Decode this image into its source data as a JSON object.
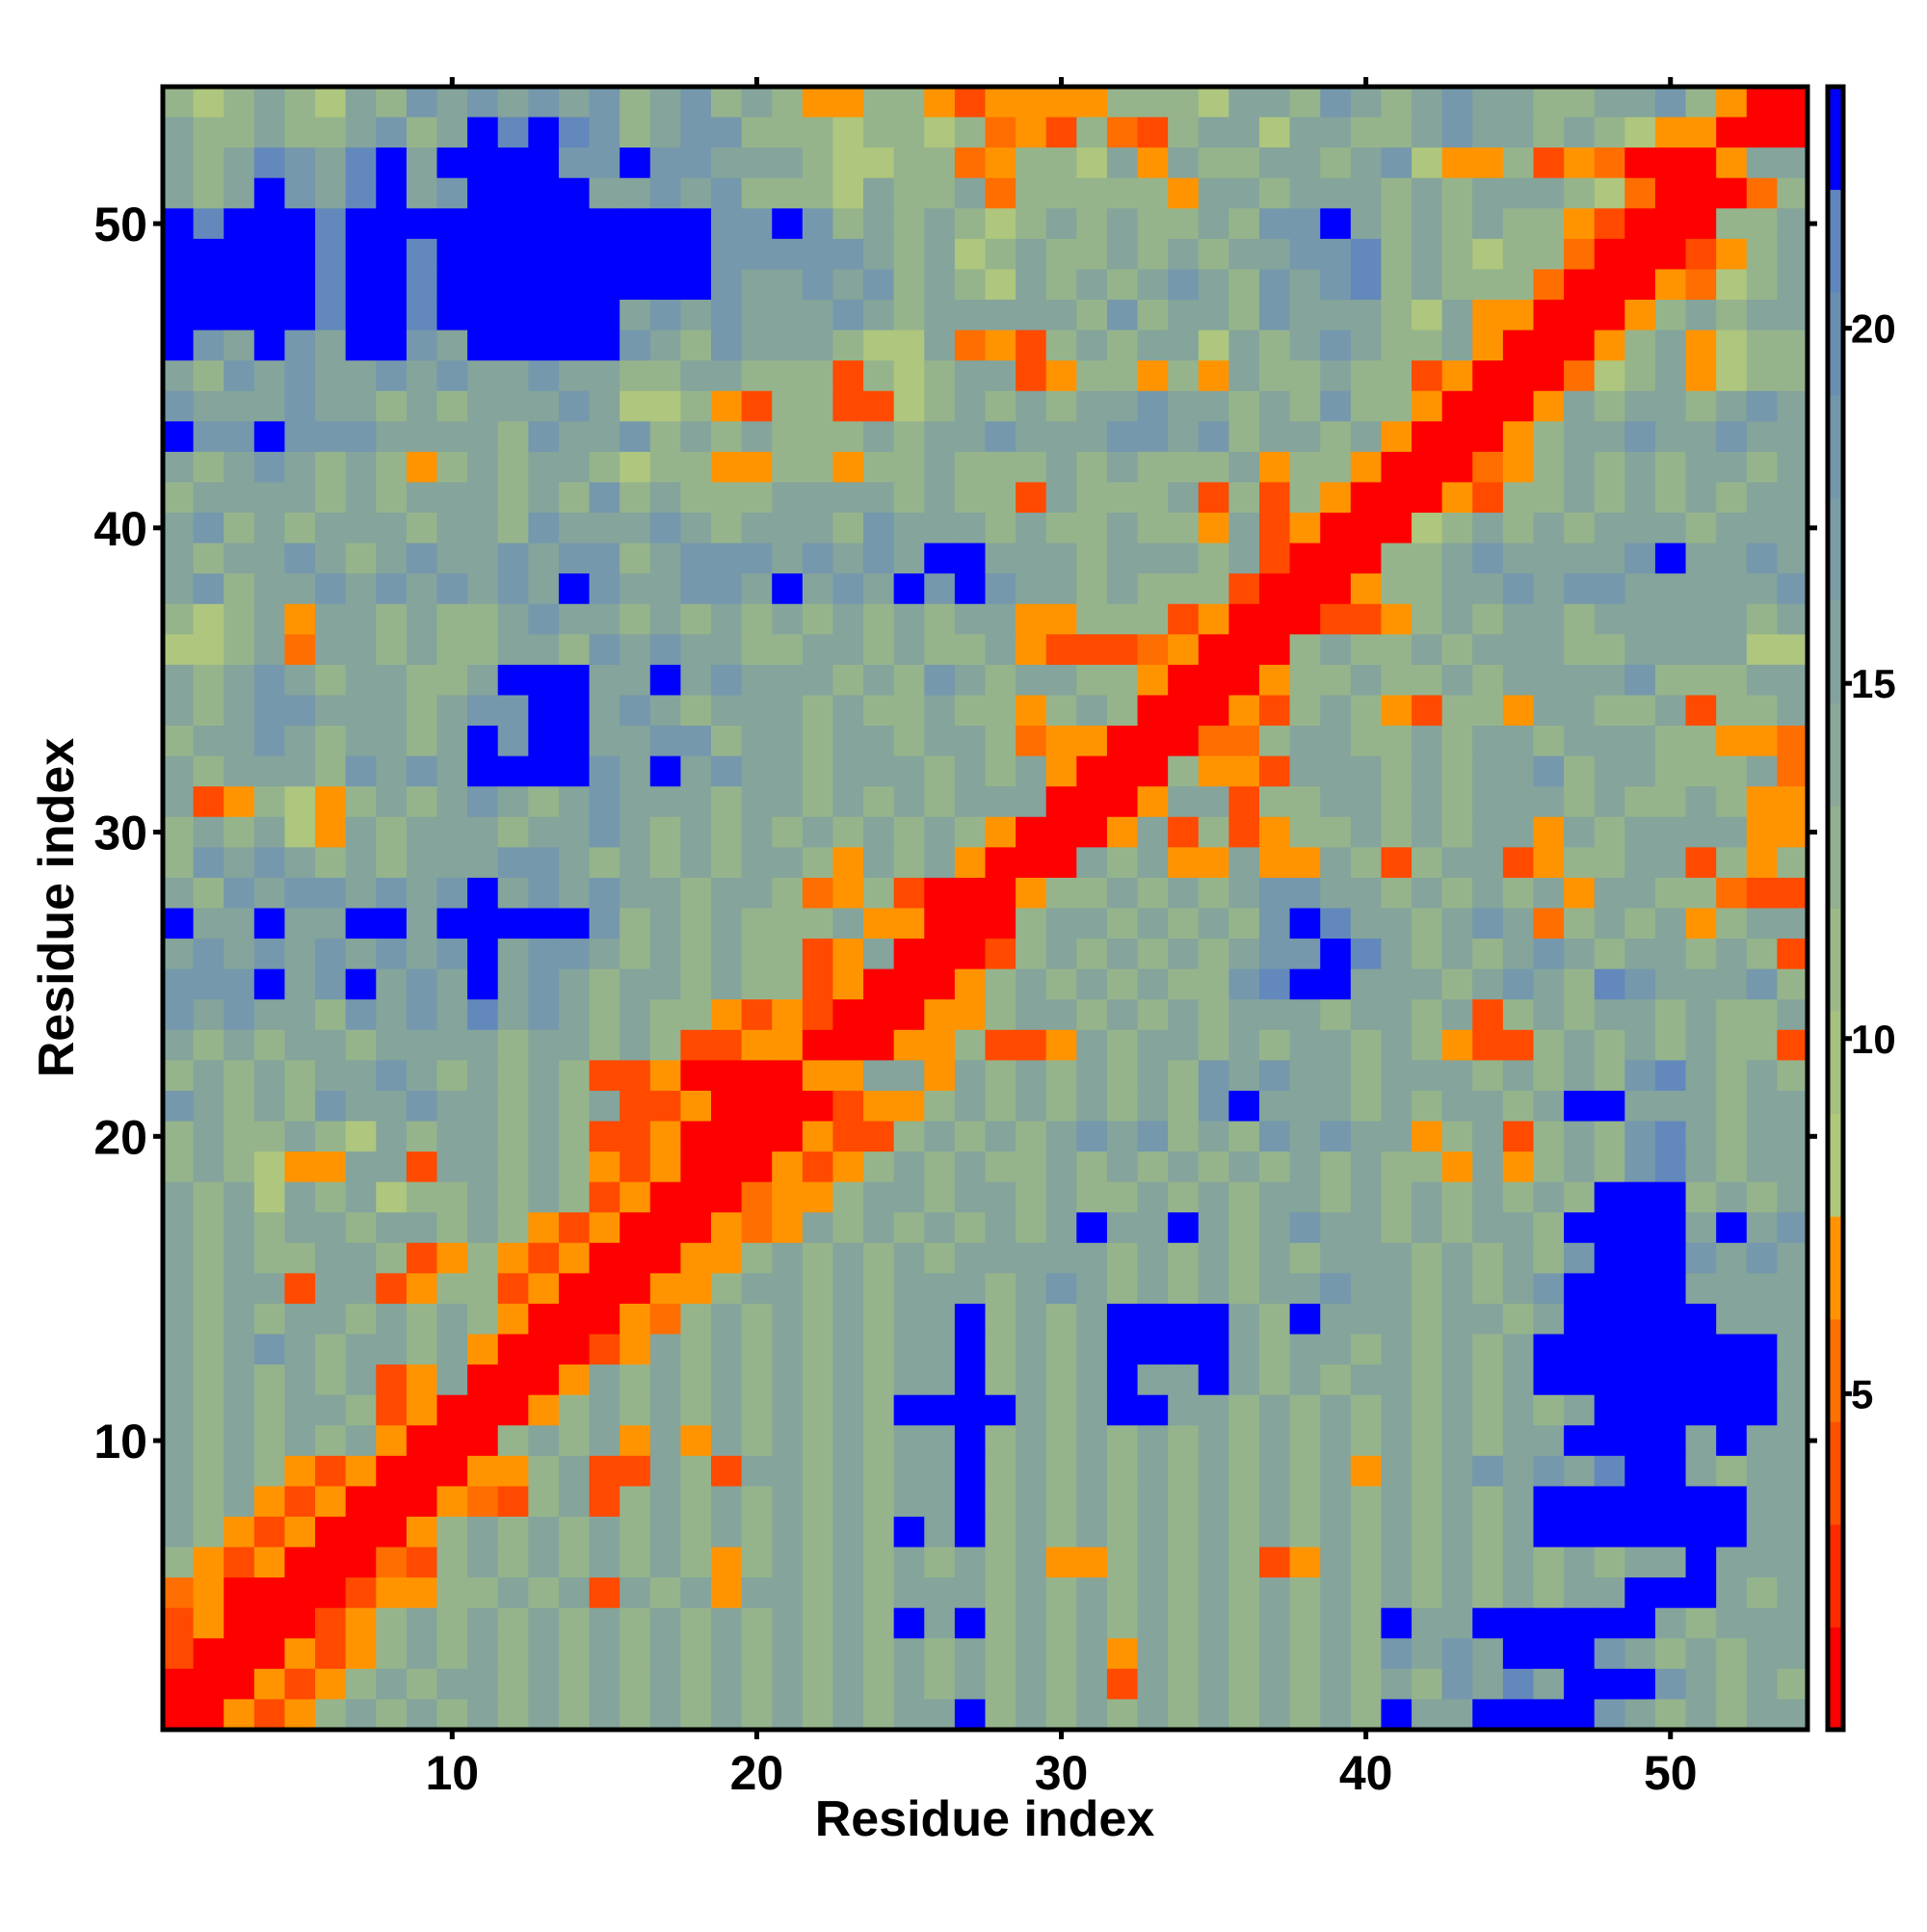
{
  "chart_data": {
    "type": "heatmap",
    "title": "",
    "xlabel": "Residue index",
    "ylabel": "Residue index",
    "n": 54,
    "xlim": [
      0.5,
      54.5
    ],
    "ylim": [
      0.5,
      54.5
    ],
    "xticks": [
      10,
      20,
      30,
      40,
      50
    ],
    "yticks": [
      10,
      20,
      30,
      40,
      50
    ],
    "colorbar": {
      "range": [
        0.27,
        23.4
      ],
      "ticks": [
        5,
        10,
        15,
        20
      ],
      "bands": [
        "#ff0000",
        "#ff2a00",
        "#ff5000",
        "#ff7000",
        "#ff9400",
        "#b0c87a",
        "#a6c080",
        "#9cb888",
        "#92b090",
        "#8aa898",
        "#82a2a0",
        "#7a9ca6",
        "#7296ac",
        "#6a8eb2",
        "#5e86bc",
        "#0000ff"
      ]
    },
    "level_colors": [
      "#ff0000",
      "#ff4a00",
      "#ff6e00",
      "#ff9400",
      "#aec67e",
      "#96b48c",
      "#84a49c",
      "#7598ac",
      "#6388bc",
      "#0000ff"
    ],
    "level_values": [
      1.5,
      3.5,
      5.0,
      6.5,
      9.0,
      11.5,
      14.5,
      17.5,
      20.0,
      23.0
    ],
    "rows_top_to_bottom": [
      "545654657676767567565335531333355546657656766556675300",
      "655655675698987567755545545231521566466556766565433000",
      "656876896999977977666544552355463655665674335132 0003",
      "656976896799996676755546556255555366566656566654200025",
      "989998999999999999779756565456565565779656565531000556",
      "999998998999999999777776564565565656677856545520001356",
      "999998998999999999766767565465656765767856555200032456",
      "999998998999999676766676566666575665766654633000356566",
      "976976997699999765766654462315656646567655630003563455",
      "657676676766766556655515456613553536556551300024563455",
      "766676656566676445315511456565667665657553000365665676",
      "977977766665766756565556566766677675665630003566766766",
      "656765653565665455335535565556565556355300023565656656",
      "566665656665657565556666565516555615153000315565656566",
      "675656665665766676566657666565565536130004565656665666",
      "656676567667677567776767699666566656100055676666796676",
      "675667676767697667769676979766565551000355667677666667",
      "545636656556766565656565656633555130001135656656666656",
      "445626656556657676655665655631112300056556566655666644",
      "656765665569996696766656576566553000355655656666755566",
      "656776665677996765666565565535650003156531553665561556",
      "566765665697996677566566566523300022566556566566655332",
      "656665767699997696766566656563000533166656566756655562",
      "613543565676567666566565656660003661556656566656556533",
      "565643656665667656565656565300036151355656566365666633",
      "576765656667765656566536563000656336336515661355661535",
      "657677676796767665665235100035565656776656565636655211",
      "966966996999997565655563300056656565798665676256563566",
      "676767676796776565655136000156565656779865656765665651",
      "777967967696765665655130003565656557899666567658766675",
      "767665767686765655313100033566565656665665615656656556",
      "656566566665665651133000335113656656566565311565656551",
      "565656676565651130000336636565656576766566656565786565",
      "765657667665656113000013356565656579666565665699666 56",
      "565565465665651130000311565656767565767663561565786566",
      "565433661665653130003135656556565656565655363565786566",
      "656465645565651300023356656656556565665656565659995656",
      "656566566565313000323656565656966965676656566599996967",
      "656556651353130003356565656666656565656665656579997676",
      "656616613551300033566565666567656565667665656799996666",
      "656566565653000325656565669565699996596665665699999666",
      "656765665630001365656565669565699996566565656999999996",
      "656565613600036565656565669565696696565665656999999996",
      "656566513000356565656565999965699665656565656569999996",
      "656565630005656363656565669565656565656565656699996966",
      "656531300033561165166565669565656565656365676768996566",
      "656313000321561565656565669565656565656565656999999966",
      "653130003565656565656565969565656565656565656999999966",
      "531300021565656565356565656563356565136565656565669666 56",
      "230000133556561656366565666565656565656565656566999656 56",
      "130001356565656565656565969565656565656596699999965 6",
      "100031356565656565656565656565636565656576769997656 5",
      "000313565665656565656565656565616565656565768699976565",
      "003135656565656565656565669565656565656596699997656 5"
    ]
  }
}
